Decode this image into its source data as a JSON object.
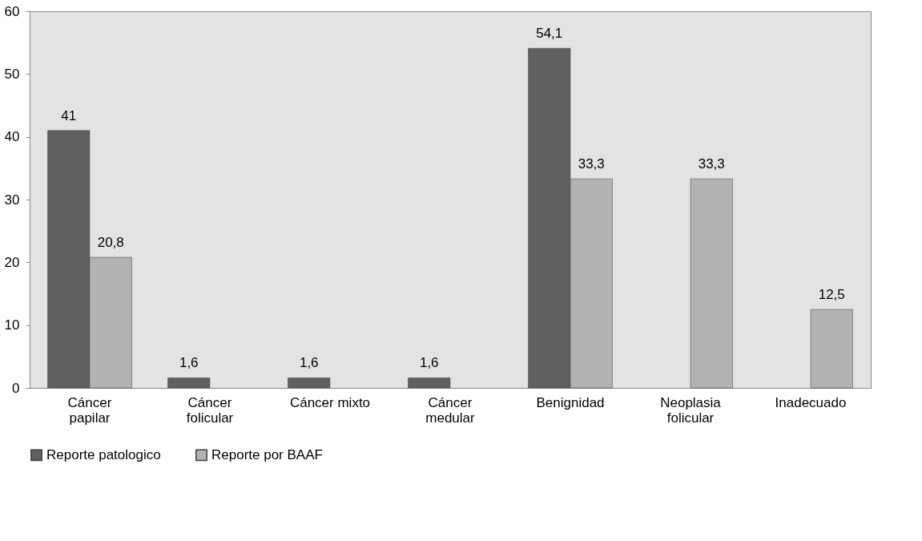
{
  "chart_data": {
    "type": "bar",
    "categories": [
      "Cáncer\npapilar",
      "Cáncer\nfolicular",
      "Cáncer mixto",
      "Cáncer\nmedular",
      "Benignidad",
      "Neoplasia\nfolicular",
      "Inadecuado"
    ],
    "series": [
      {
        "name": "Reporte patologico",
        "color": "#606060",
        "values": [
          41,
          1.6,
          1.6,
          1.6,
          54.1,
          null,
          null
        ],
        "value_labels": [
          "41",
          "1,6",
          "1,6",
          "1,6",
          "54,1",
          null,
          null
        ]
      },
      {
        "name": "Reporte por BAAF",
        "color": "#b2b2b2",
        "values": [
          20.8,
          null,
          null,
          null,
          33.3,
          33.3,
          12.5
        ],
        "value_labels": [
          "20,8",
          null,
          null,
          null,
          "33,3",
          "33,3",
          "12,5"
        ]
      }
    ],
    "ylim": [
      0,
      60
    ],
    "yticks": [
      0,
      10,
      20,
      30,
      40,
      50,
      60
    ],
    "grid": false,
    "legend": "bottom"
  }
}
